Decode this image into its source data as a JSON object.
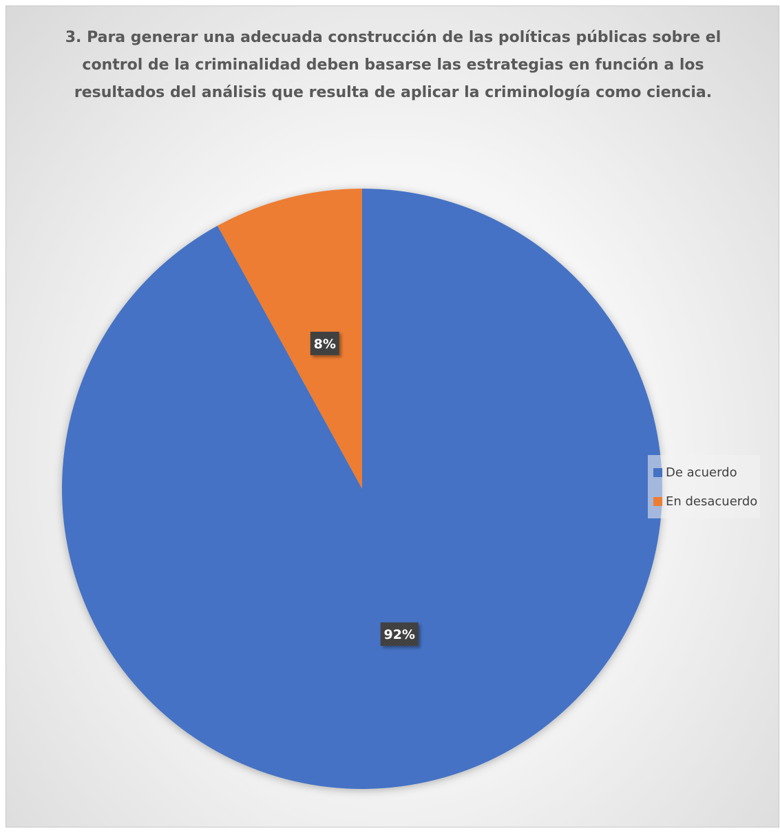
{
  "chart_data": {
    "type": "pie",
    "title": "3. Para generar una adecuada construcción de las políticas públicas sobre el control de la criminalidad deben basarse las estrategias en función a los resultados del análisis que resulta de aplicar la criminología como ciencia.",
    "categories": [
      "De acuerdo",
      "En desacuerdo"
    ],
    "values": [
      92,
      8
    ],
    "data_labels": [
      "92%",
      "8%"
    ],
    "colors": [
      "#4472c4",
      "#ed7d31"
    ],
    "start_angle_deg": 0,
    "direction": "clockwise",
    "legend_position": "right"
  }
}
